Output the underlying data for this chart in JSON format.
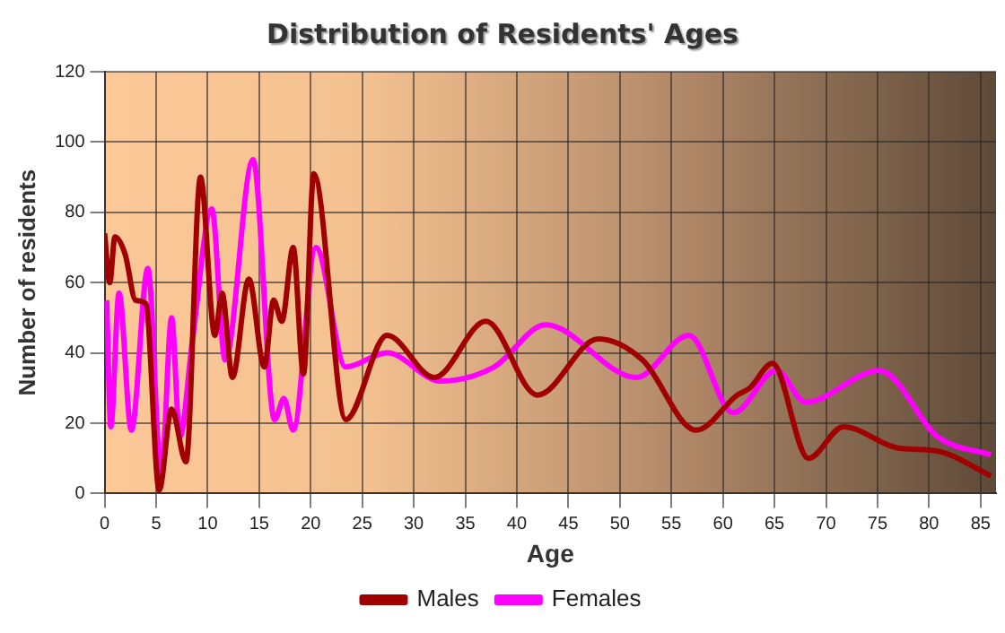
{
  "chart_data": {
    "type": "line",
    "title": "Distribution of Residents' Ages",
    "xlabel": "Age",
    "ylabel": "Number of residents",
    "xlim": [
      0,
      86.5
    ],
    "xticks": [
      0,
      5,
      10,
      15,
      20,
      25,
      30,
      35,
      40,
      45,
      50,
      55,
      60,
      65,
      70,
      75,
      80,
      85
    ],
    "ylim": [
      0,
      120
    ],
    "yticks": [
      0,
      20,
      40,
      60,
      80,
      100,
      120
    ],
    "grid": true,
    "legend": "bottom",
    "marker": "none",
    "line_style": "solid",
    "series": [
      {
        "name": "Males",
        "color": "#a00000",
        "x": [
          0,
          0.5,
          1,
          2,
          3,
          4,
          5.3,
          6.5,
          7.9,
          9.3,
          10.7,
          11.4,
          12.4,
          14,
          15.5,
          16.4,
          17.2,
          18.3,
          19.3,
          20.3,
          23.4,
          27.4,
          32,
          37,
          42,
          47.9,
          52.2,
          57.4,
          61.4,
          62.6,
          64.8,
          68.3,
          71.7,
          76.9,
          80.9,
          86
        ],
        "values": [
          74,
          60,
          73,
          68,
          55,
          54,
          1,
          24,
          9,
          90,
          45,
          57,
          33,
          61,
          36,
          55,
          49,
          70,
          34,
          91,
          21,
          45,
          33,
          49,
          28,
          44,
          38,
          18,
          28,
          30,
          37,
          10,
          19,
          13,
          12,
          5
        ]
      },
      {
        "name": "Females",
        "color": "#ff00ff",
        "x": [
          0.2,
          0.6,
          1.4,
          2.6,
          4.2,
          5.5,
          6.5,
          7.3,
          8.5,
          10.4,
          11.7,
          14.4,
          16.5,
          17.4,
          18.3,
          20.5,
          23.4,
          27.4,
          32.6,
          37.8,
          42.8,
          51.6,
          56.7,
          61,
          65.2,
          68,
          75.2,
          80.9,
          86
        ],
        "values": [
          55,
          19,
          57,
          18,
          64,
          5,
          50,
          16,
          43,
          81,
          38,
          95,
          21,
          27,
          18,
          70,
          36,
          40,
          32,
          36,
          48,
          33,
          45,
          23,
          35,
          26,
          35,
          16,
          11
        ]
      }
    ]
  }
}
